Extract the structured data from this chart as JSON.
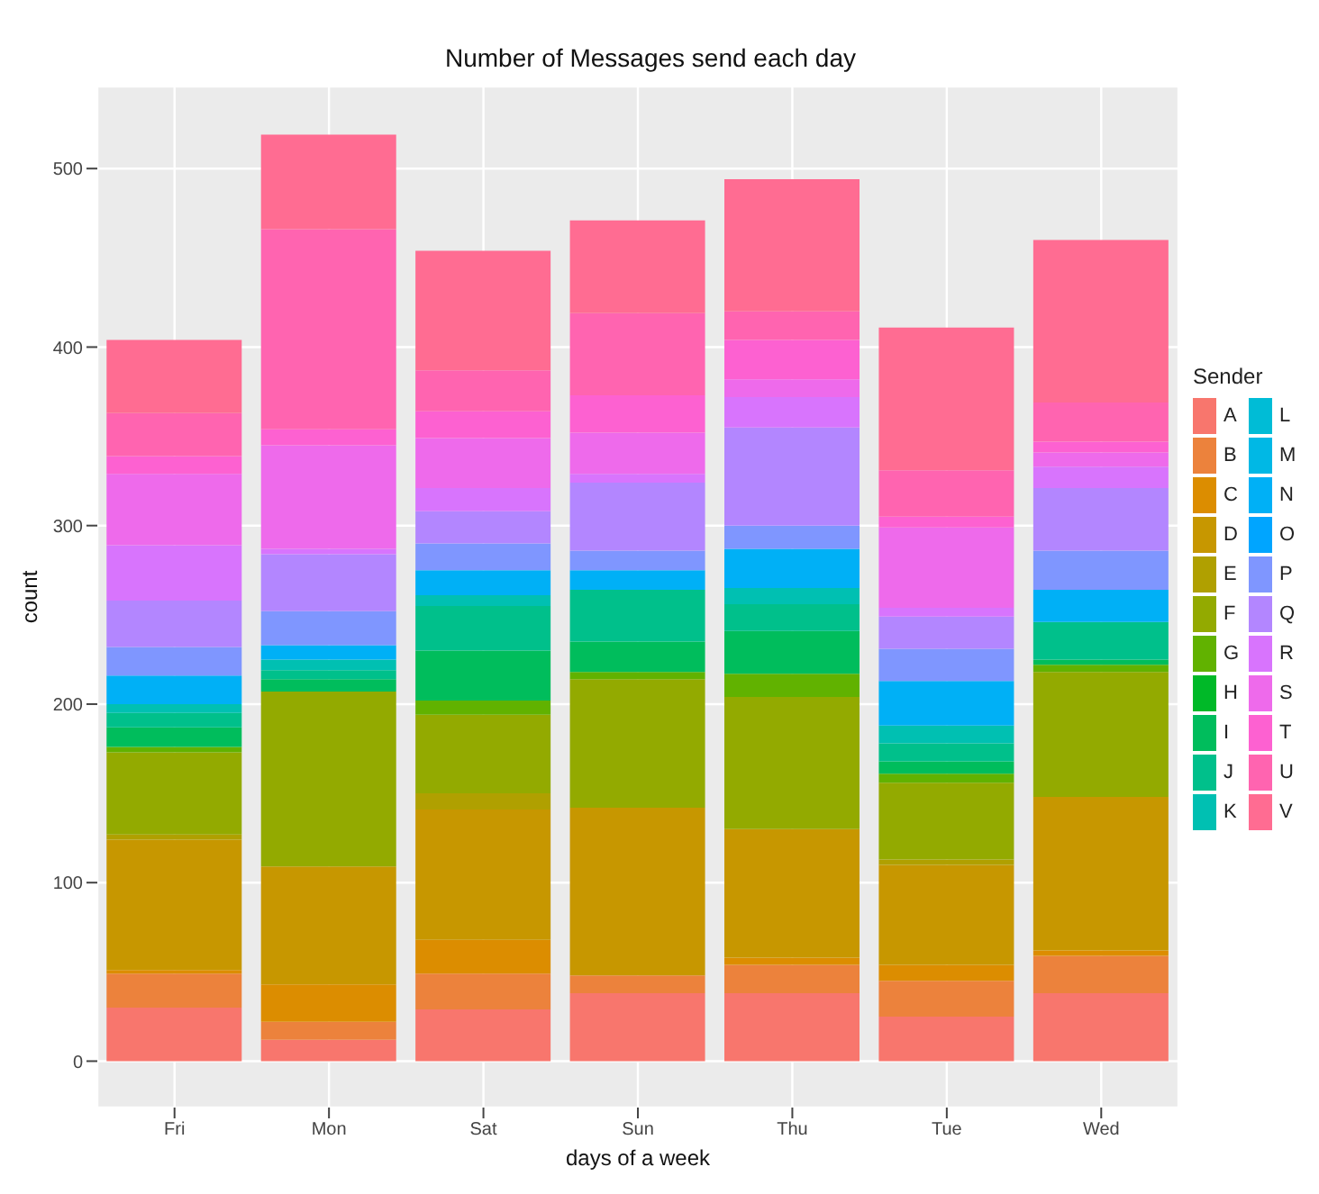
{
  "chart_data": {
    "type": "bar",
    "title": "Number of Messages send each day",
    "xlabel": "days of a week",
    "ylabel": "count",
    "legend_title": "Sender",
    "categories": [
      "Fri",
      "Mon",
      "Sat",
      "Sun",
      "Thu",
      "Tue",
      "Wed"
    ],
    "stacked": true,
    "grid": true,
    "legend": "right",
    "ylim": [
      -26,
      546
    ],
    "yticks": [
      0,
      100,
      200,
      300,
      400,
      500
    ],
    "series": [
      {
        "name": "A",
        "color": "#F8766D",
        "values": [
          30,
          12,
          29,
          38,
          38,
          25,
          38
        ]
      },
      {
        "name": "B",
        "color": "#EC823C",
        "values": [
          19,
          10,
          20,
          10,
          16,
          20,
          21
        ]
      },
      {
        "name": "C",
        "color": "#DC8D00",
        "values": [
          2,
          21,
          19,
          0,
          4,
          9,
          3
        ]
      },
      {
        "name": "D",
        "color": "#C79700",
        "values": [
          73,
          66,
          73,
          94,
          72,
          56,
          86
        ]
      },
      {
        "name": "E",
        "color": "#B0A000",
        "values": [
          3,
          0,
          9,
          0,
          0,
          3,
          0
        ]
      },
      {
        "name": "F",
        "color": "#93AA00",
        "values": [
          46,
          98,
          44,
          72,
          74,
          43,
          70
        ]
      },
      {
        "name": "G",
        "color": "#61B200",
        "values": [
          3,
          0,
          8,
          4,
          13,
          5,
          4
        ]
      },
      {
        "name": "H",
        "color": "#00B928",
        "values": [
          0,
          0,
          0,
          0,
          0,
          0,
          0
        ]
      },
      {
        "name": "I",
        "color": "#00BD5C",
        "values": [
          11,
          7,
          28,
          17,
          24,
          7,
          3
        ]
      },
      {
        "name": "J",
        "color": "#00C08B",
        "values": [
          8,
          5,
          25,
          29,
          15,
          10,
          21
        ]
      },
      {
        "name": "K",
        "color": "#00C0B2",
        "values": [
          5,
          6,
          6,
          0,
          9,
          10,
          0
        ]
      },
      {
        "name": "L",
        "color": "#00BCD6",
        "values": [
          0,
          0,
          0,
          0,
          0,
          0,
          0
        ]
      },
      {
        "name": "M",
        "color": "#00B8E5",
        "values": [
          0,
          0,
          0,
          0,
          0,
          0,
          0
        ]
      },
      {
        "name": "N",
        "color": "#00B0F6",
        "values": [
          16,
          8,
          14,
          11,
          22,
          25,
          18
        ]
      },
      {
        "name": "O",
        "color": "#00A5FF",
        "values": [
          0,
          0,
          0,
          0,
          0,
          0,
          0
        ]
      },
      {
        "name": "P",
        "color": "#7F96FF",
        "values": [
          16,
          19,
          15,
          11,
          13,
          18,
          22
        ]
      },
      {
        "name": "Q",
        "color": "#B386FF",
        "values": [
          26,
          32,
          18,
          38,
          55,
          18,
          35
        ]
      },
      {
        "name": "R",
        "color": "#D874FD",
        "values": [
          31,
          3,
          13,
          5,
          17,
          5,
          12
        ]
      },
      {
        "name": "S",
        "color": "#EE6AEB",
        "values": [
          40,
          58,
          28,
          23,
          10,
          45,
          8
        ]
      },
      {
        "name": "T",
        "color": "#FD61D1",
        "values": [
          10,
          9,
          15,
          21,
          22,
          6,
          6
        ]
      },
      {
        "name": "U",
        "color": "#FF64B0",
        "values": [
          24,
          112,
          23,
          46,
          16,
          26,
          22
        ]
      },
      {
        "name": "V",
        "color": "#FF6C92",
        "values": [
          41,
          53,
          67,
          52,
          74,
          80,
          91
        ]
      }
    ]
  }
}
